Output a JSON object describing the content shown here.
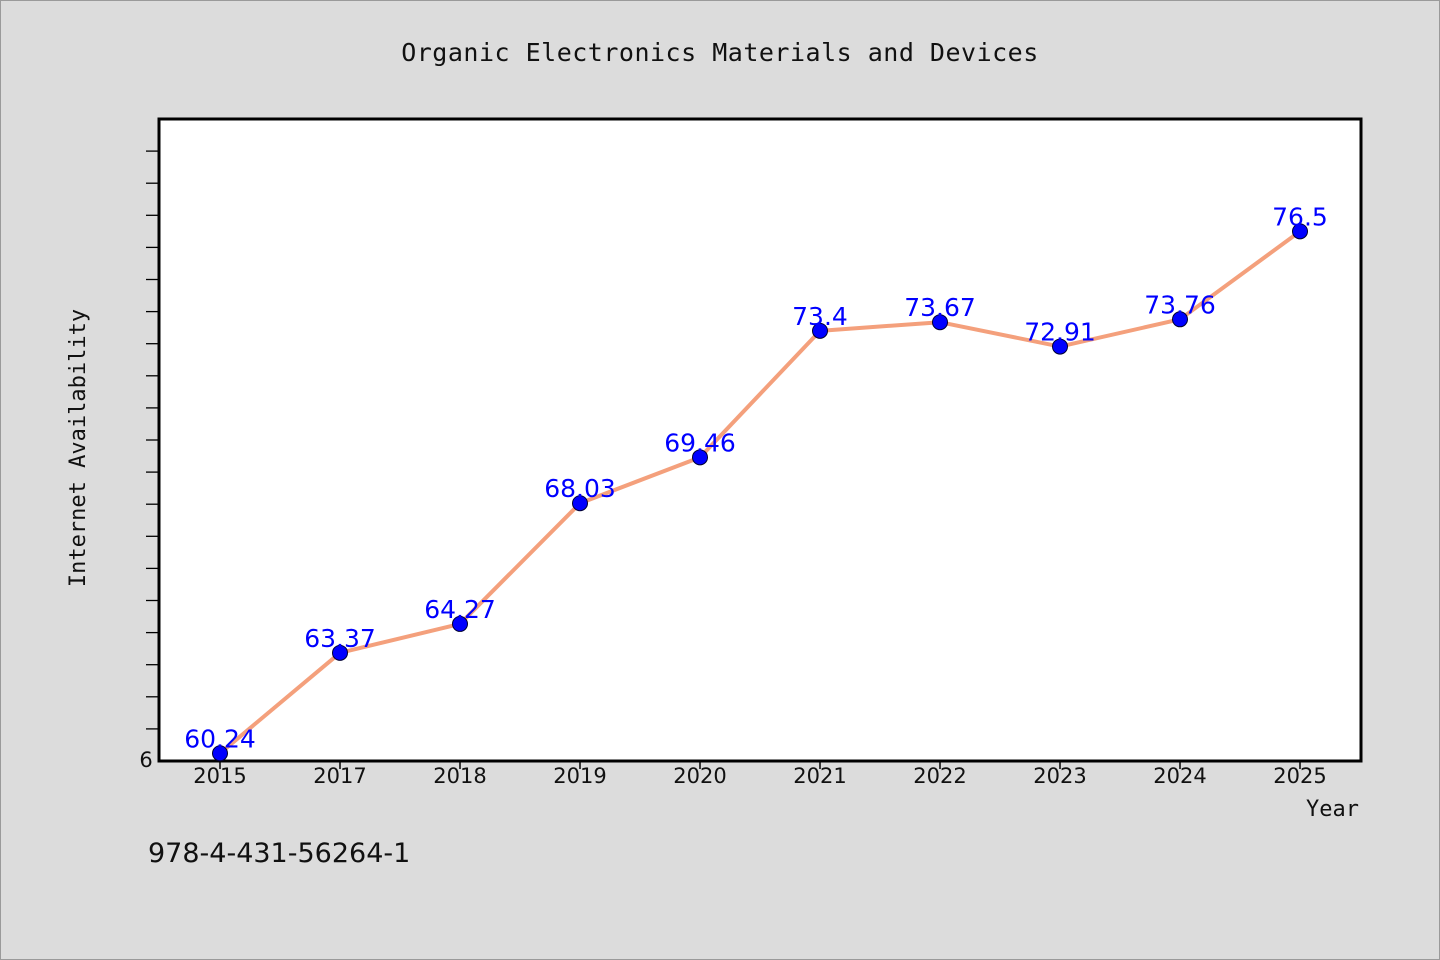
{
  "chart_data": {
    "type": "line",
    "title": "Organic Electronics Materials and Devices",
    "xlabel": "Year",
    "ylabel": "Internet Availability",
    "categories": [
      "2015",
      "2017",
      "2018",
      "2019",
      "2020",
      "2021",
      "2022",
      "2023",
      "2024",
      "2025"
    ],
    "series": [
      {
        "values": [
          60.24,
          63.37,
          64.27,
          68.03,
          69.46,
          73.4,
          73.67,
          72.91,
          73.76,
          76.5
        ],
        "data_labels": [
          "60.24",
          "63.37",
          "64.27",
          "68.03",
          "69.46",
          "73.4",
          "73.67",
          "72.91",
          "73.76",
          "76.5"
        ],
        "line_color": "#f4a07c",
        "marker_color": "#0000ff"
      }
    ],
    "ylim": [
      60,
      80
    ],
    "y_tick_label": "6",
    "grid": false,
    "legend": "none"
  },
  "footer": {
    "code": "978-4-431-56264-1"
  }
}
